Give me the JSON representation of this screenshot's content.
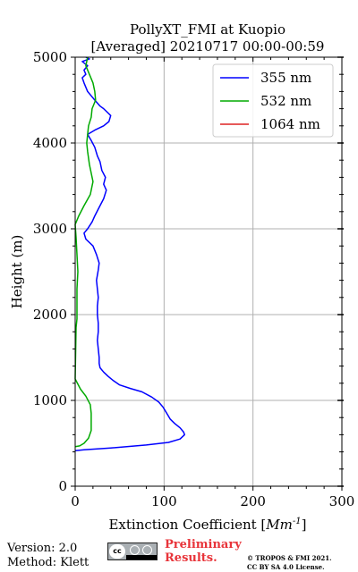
{
  "chart_data": {
    "type": "line",
    "title_line1": "PollyXT_FMI at Kuopio",
    "title_line2": "[Averaged] 20210717 00:00-00:59",
    "xlabel_prefix": "Extinction Coefficient [",
    "xlabel_unit": "Mm",
    "xlabel_exp": "-1",
    "xlabel_suffix": "]",
    "ylabel": "Height (m)",
    "xlim": [
      0,
      300
    ],
    "ylim": [
      0,
      5000
    ],
    "x_ticks": [
      "0",
      "100",
      "200",
      "300"
    ],
    "y_ticks": [
      "0",
      "1000",
      "2000",
      "3000",
      "4000",
      "5000"
    ],
    "grid": true,
    "legend_position": "top-right",
    "series": [
      {
        "name": "355 nm",
        "color": "#0000ff",
        "points": [
          [
            0,
            415
          ],
          [
            10,
            425
          ],
          [
            40,
            445
          ],
          [
            80,
            480
          ],
          [
            105,
            510
          ],
          [
            118,
            550
          ],
          [
            123,
            600
          ],
          [
            122,
            630
          ],
          [
            118,
            680
          ],
          [
            112,
            730
          ],
          [
            107,
            780
          ],
          [
            103,
            850
          ],
          [
            99,
            920
          ],
          [
            94,
            980
          ],
          [
            86,
            1040
          ],
          [
            75,
            1100
          ],
          [
            62,
            1140
          ],
          [
            50,
            1180
          ],
          [
            43,
            1230
          ],
          [
            37,
            1280
          ],
          [
            32,
            1330
          ],
          [
            28,
            1380
          ],
          [
            27,
            1430
          ],
          [
            27,
            1500
          ],
          [
            26,
            1600
          ],
          [
            25,
            1700
          ],
          [
            26,
            1800
          ],
          [
            26,
            1900
          ],
          [
            25,
            2000
          ],
          [
            25,
            2100
          ],
          [
            26,
            2200
          ],
          [
            25,
            2300
          ],
          [
            24,
            2400
          ],
          [
            26,
            2520
          ],
          [
            27,
            2600
          ],
          [
            24,
            2700
          ],
          [
            20,
            2800
          ],
          [
            12,
            2880
          ],
          [
            10,
            2950
          ],
          [
            14,
            3000
          ],
          [
            19,
            3080
          ],
          [
            22,
            3150
          ],
          [
            27,
            3250
          ],
          [
            32,
            3350
          ],
          [
            35,
            3450
          ],
          [
            32,
            3520
          ],
          [
            34,
            3600
          ],
          [
            30,
            3680
          ],
          [
            28,
            3780
          ],
          [
            25,
            3850
          ],
          [
            22,
            3950
          ],
          [
            18,
            4030
          ],
          [
            14,
            4100
          ],
          [
            22,
            4150
          ],
          [
            32,
            4200
          ],
          [
            38,
            4250
          ],
          [
            40,
            4320
          ],
          [
            32,
            4400
          ],
          [
            28,
            4430
          ],
          [
            22,
            4500
          ],
          [
            18,
            4550
          ],
          [
            14,
            4600
          ],
          [
            10,
            4700
          ],
          [
            8,
            4760
          ],
          [
            12,
            4800
          ],
          [
            10,
            4850
          ],
          [
            14,
            4900
          ],
          [
            8,
            4950
          ],
          [
            16,
            4980
          ],
          [
            12,
            5000
          ]
        ]
      },
      {
        "name": "532 nm",
        "color": "#00aa00",
        "points": [
          [
            0,
            460
          ],
          [
            5,
            470
          ],
          [
            10,
            500
          ],
          [
            15,
            560
          ],
          [
            18,
            650
          ],
          [
            18,
            750
          ],
          [
            18,
            850
          ],
          [
            17,
            950
          ],
          [
            12,
            1050
          ],
          [
            6,
            1130
          ],
          [
            0,
            1250
          ],
          [
            1,
            1850
          ],
          [
            2,
            1950
          ],
          [
            2,
            2100
          ],
          [
            2,
            2300
          ],
          [
            3,
            2500
          ],
          [
            2,
            2700
          ],
          [
            1,
            2900
          ],
          [
            0,
            3050
          ],
          [
            4,
            3150
          ],
          [
            10,
            3270
          ],
          [
            17,
            3400
          ],
          [
            20,
            3550
          ],
          [
            18,
            3650
          ],
          [
            16,
            3750
          ],
          [
            14,
            3900
          ],
          [
            13,
            4000
          ],
          [
            14,
            4100
          ],
          [
            15,
            4200
          ],
          [
            18,
            4300
          ],
          [
            19,
            4400
          ],
          [
            23,
            4500
          ],
          [
            22,
            4600
          ],
          [
            20,
            4700
          ],
          [
            16,
            4800
          ],
          [
            12,
            4900
          ],
          [
            14,
            5000
          ]
        ]
      },
      {
        "name": "1064 nm",
        "color": "#dd2222",
        "points": []
      }
    ]
  },
  "footer": {
    "version": "Version: 2.0",
    "method": "Method: Klett",
    "cc_label": "cc",
    "preliminary_line1": "Preliminary",
    "preliminary_line2": "Results.",
    "copyright_line1": "© TROPOS & FMI 2021.",
    "copyright_line2": "CC BY SA 4.0 License."
  }
}
